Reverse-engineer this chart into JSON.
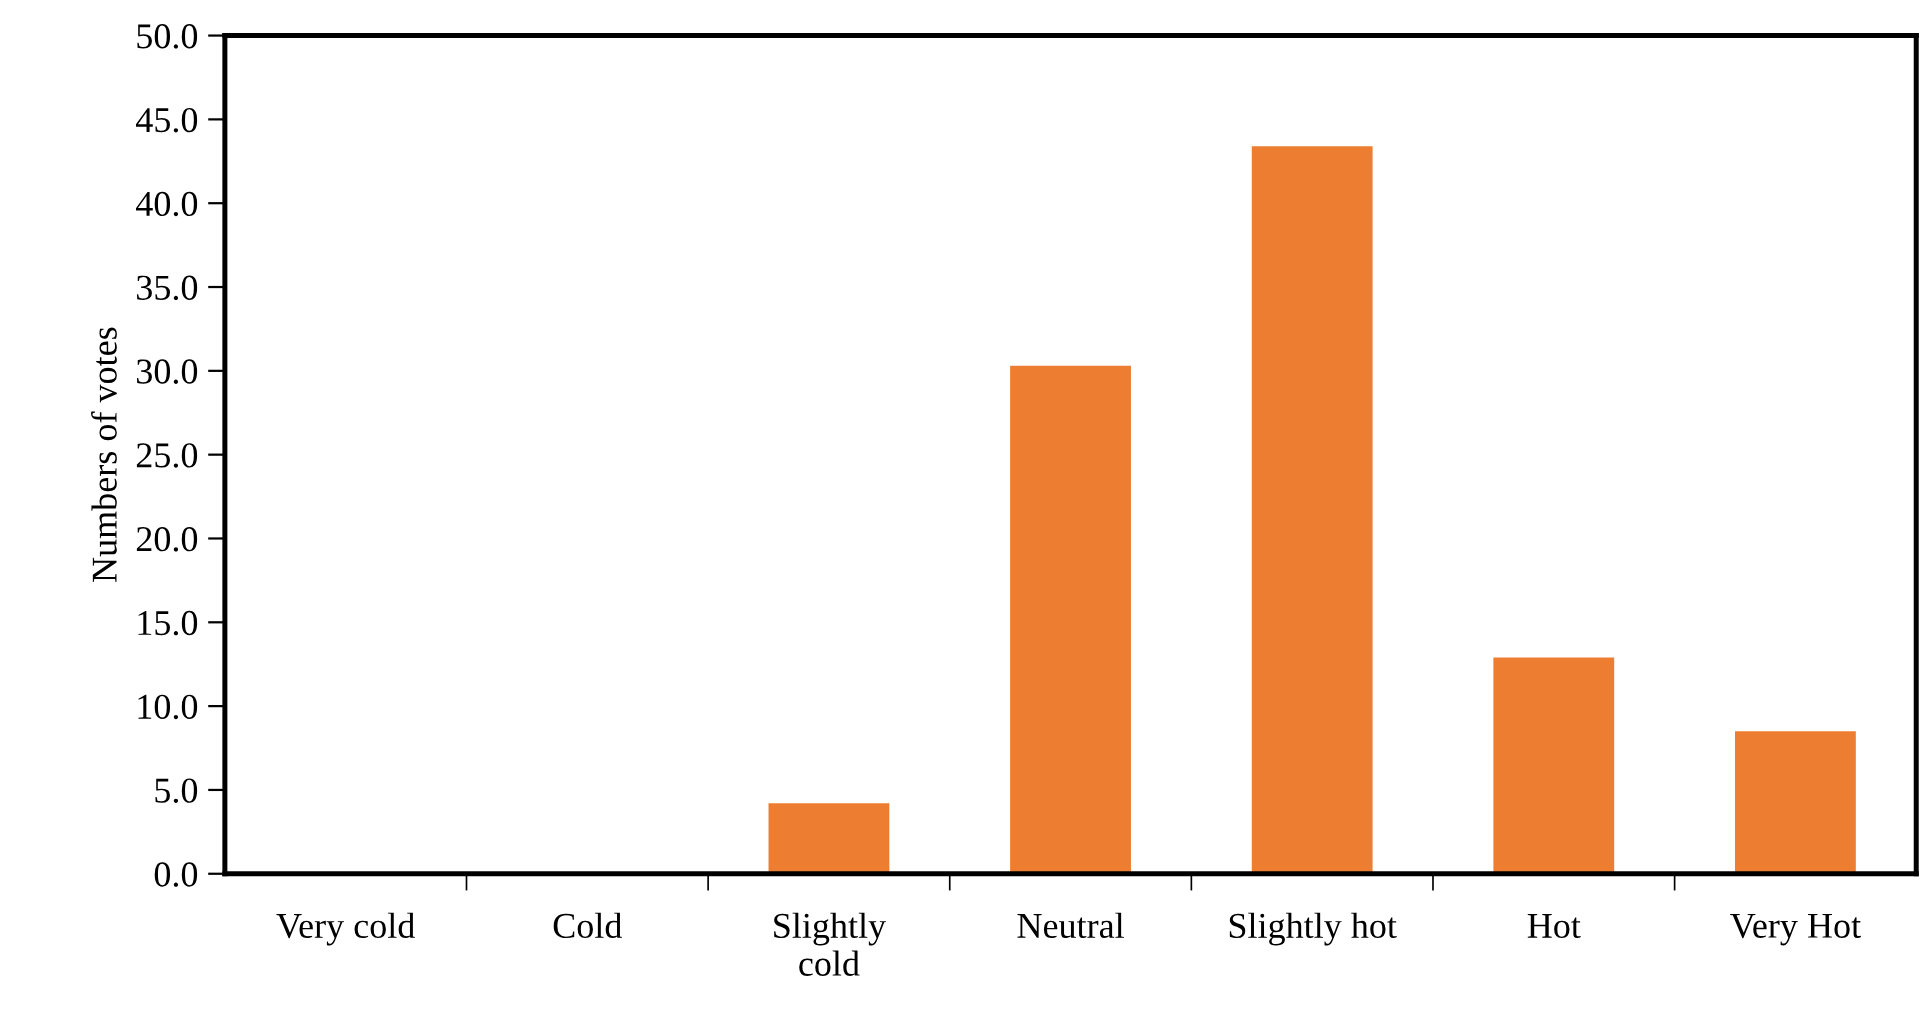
{
  "chart_data": {
    "type": "bar",
    "ylabel": "Numbers of votes",
    "categories": [
      "Very cold",
      "Cold",
      "Slightly\ncold",
      "Neutral",
      "Slightly hot",
      "Hot",
      "Very Hot"
    ],
    "values": [
      0,
      0,
      4.2,
      30.3,
      43.4,
      12.9,
      8.5
    ],
    "color": "#ed7d31",
    "ylim": [
      0,
      50
    ],
    "yticks": [
      {
        "value": 0,
        "label": "0.0"
      },
      {
        "value": 5,
        "label": "5.0"
      },
      {
        "value": 10,
        "label": "10.0"
      },
      {
        "value": 15,
        "label": "15.0"
      },
      {
        "value": 20,
        "label": "20.0"
      },
      {
        "value": 25,
        "label": "25.0"
      },
      {
        "value": 30,
        "label": "30.0"
      },
      {
        "value": 35,
        "label": "35.0"
      },
      {
        "value": 40,
        "label": "40.0"
      },
      {
        "value": 45,
        "label": "45.0"
      },
      {
        "value": 50,
        "label": "50.0"
      }
    ],
    "grid": false
  }
}
